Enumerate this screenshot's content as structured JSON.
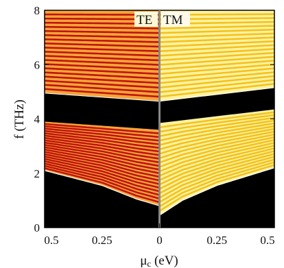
{
  "chart_data": {
    "type": "heatmap",
    "title": "",
    "xlabel_main": "μ",
    "xlabel_sub": "c",
    "xlabel_unit": " (eV)",
    "ylabel": "f (THz)",
    "ylim": [
      0,
      8
    ],
    "y_ticks": [
      "0",
      "2",
      "4",
      "6",
      "8"
    ],
    "x_ticks": [
      "0.5",
      "0.25",
      "0",
      "0.25",
      "0.5"
    ],
    "panels": [
      {
        "label": "TE",
        "xlim": [
          0.5,
          0
        ],
        "palette": "red",
        "lower_band_edge_thz": [
          {
            "mu": 0.5,
            "f": 2.1
          },
          {
            "mu": 0.25,
            "f": 1.55
          },
          {
            "mu": 0.1,
            "f": 1.05
          },
          {
            "mu": 0,
            "f": 0.8
          }
        ],
        "gap_thz": [
          {
            "mu": 0.5,
            "lo": 3.9,
            "hi": 4.95
          },
          {
            "mu": 0.25,
            "lo": 3.75,
            "hi": 4.8
          },
          {
            "mu": 0,
            "lo": 3.6,
            "hi": 4.65
          }
        ]
      },
      {
        "label": "TM",
        "xlim": [
          0,
          0.5
        ],
        "palette": "yellow",
        "lower_band_edge_thz": [
          {
            "mu": 0,
            "f": 0.45
          },
          {
            "mu": 0.1,
            "f": 1.0
          },
          {
            "mu": 0.25,
            "f": 1.55
          },
          {
            "mu": 0.5,
            "f": 2.2
          }
        ],
        "gap_thz": [
          {
            "mu": 0,
            "lo": 3.85,
            "hi": 4.65
          },
          {
            "mu": 0.25,
            "lo": 4.1,
            "hi": 4.9
          },
          {
            "mu": 0.5,
            "lo": 4.35,
            "hi": 5.15
          }
        ]
      }
    ],
    "colors": {
      "te_fringe_light": "#f5a43a",
      "te_fringe_dark": "#c0140a",
      "tm_fringe_light": "#fff2a0",
      "tm_fringe_dark": "#f2c21e",
      "background": "#000000",
      "divider": "#888888"
    }
  }
}
